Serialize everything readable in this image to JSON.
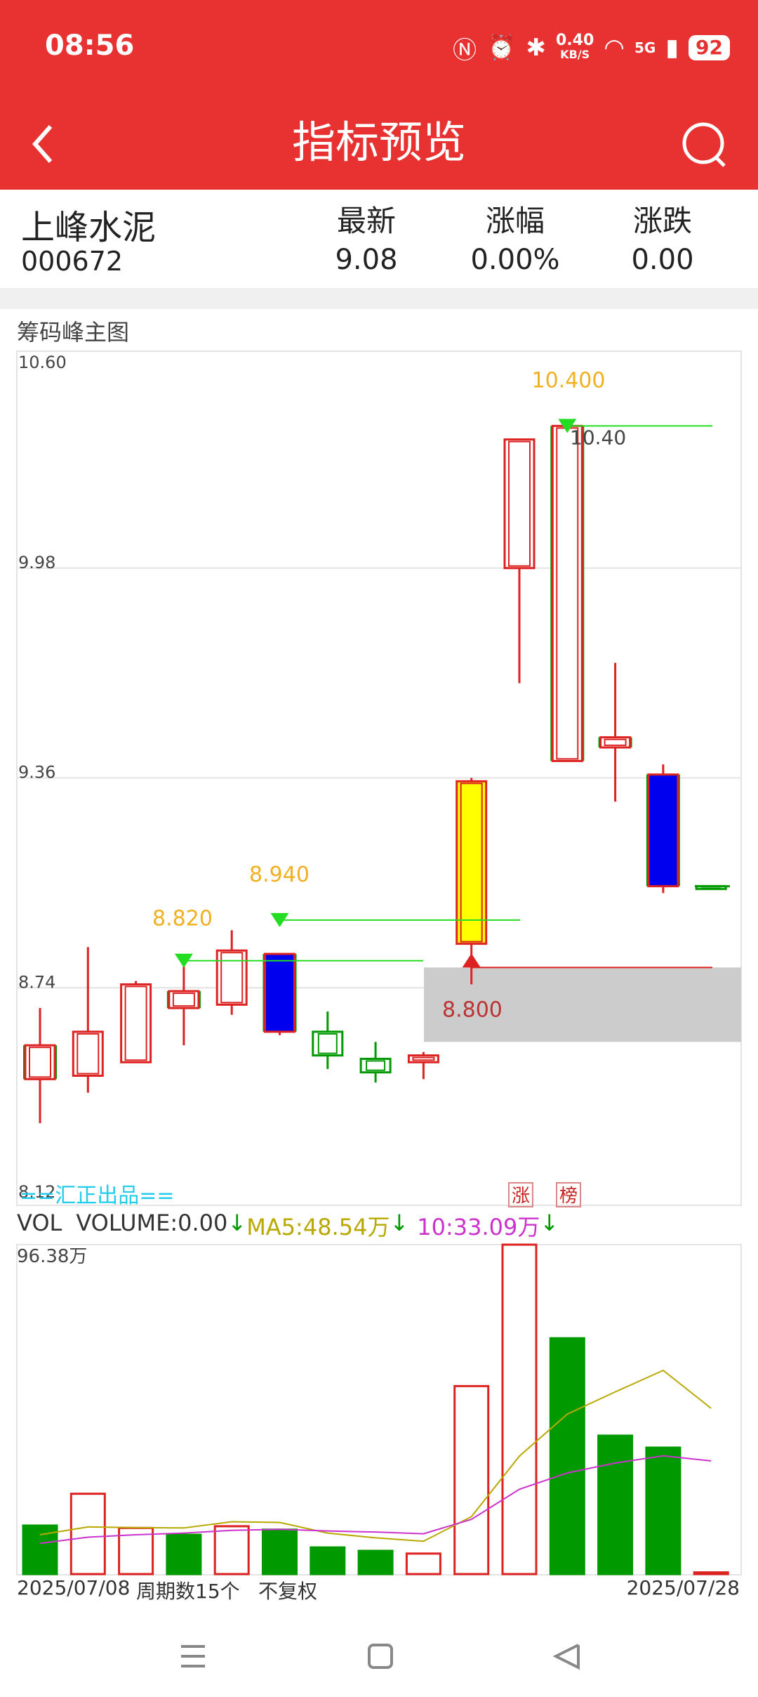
{
  "status_bar": {
    "time": "08:56",
    "net_speed_value": "0.40",
    "net_speed_unit": "KB/S",
    "signal": "5G",
    "battery": "92"
  },
  "header": {
    "title": "指标预览"
  },
  "stock": {
    "name": "上峰水泥",
    "code": "000672",
    "columns": [
      {
        "label": "最新",
        "value": "9.08"
      },
      {
        "label": "涨幅",
        "value": "0.00%"
      },
      {
        "label": "涨跌",
        "value": "0.00"
      }
    ]
  },
  "chart_label": "筹码峰主图",
  "colors": {
    "brand_red": "#e83232",
    "candle_up": "#dd2222",
    "candle_down": "#009a00",
    "highlight_blue": "#0000ee",
    "highlight_yellow": "#ffff00",
    "signal_green": "#22dd22",
    "label_orange": "#f0b020",
    "ma5": "#b8a800",
    "ma10": "#cc33cc"
  },
  "chart_data": [
    {
      "type": "candlestick",
      "y_ticks": [
        "10.60",
        "9.98",
        "9.36",
        "8.74",
        "8.12"
      ],
      "ylim": [
        8.12,
        10.6
      ],
      "candles": [
        {
          "o": 8.47,
          "h": 8.68,
          "l": 8.34,
          "c": 8.57,
          "color": "up",
          "edge": "down"
        },
        {
          "o": 8.48,
          "h": 8.86,
          "l": 8.43,
          "c": 8.61,
          "color": "up"
        },
        {
          "o": 8.52,
          "h": 8.76,
          "l": 8.52,
          "c": 8.75,
          "color": "up"
        },
        {
          "o": 8.68,
          "h": 8.83,
          "l": 8.57,
          "c": 8.73,
          "color": "up",
          "edge": "down"
        },
        {
          "o": 8.69,
          "h": 8.91,
          "l": 8.66,
          "c": 8.85,
          "color": "up"
        },
        {
          "o": 8.84,
          "h": 8.84,
          "l": 8.6,
          "c": 8.61,
          "color": "blue"
        },
        {
          "o": 8.61,
          "h": 8.67,
          "l": 8.5,
          "c": 8.54,
          "color": "down"
        },
        {
          "o": 8.53,
          "h": 8.58,
          "l": 8.46,
          "c": 8.49,
          "color": "down"
        },
        {
          "o": 8.52,
          "h": 8.55,
          "l": 8.47,
          "c": 8.54,
          "color": "up"
        },
        {
          "o": 8.87,
          "h": 9.36,
          "l": 8.75,
          "c": 9.35,
          "color": "yellow"
        },
        {
          "o": 9.98,
          "h": 10.36,
          "l": 9.64,
          "c": 10.36,
          "color": "up"
        },
        {
          "o": 10.4,
          "h": 10.4,
          "l": 9.41,
          "c": 9.41,
          "color": "up",
          "edge": "down"
        },
        {
          "o": 9.45,
          "h": 9.7,
          "l": 9.29,
          "c": 9.48,
          "color": "up",
          "edge": "down"
        },
        {
          "o": 9.37,
          "h": 9.4,
          "l": 9.02,
          "c": 9.04,
          "color": "blue"
        },
        {
          "o": 9.04,
          "h": 9.04,
          "l": 9.04,
          "c": 9.04,
          "color": "down"
        }
      ],
      "annotations": [
        {
          "text": "8.820",
          "value": 8.82,
          "candle": 3
        },
        {
          "text": "8.940",
          "value": 8.94,
          "candle": 5
        },
        {
          "text": "10.400",
          "value": 10.4,
          "candle": 11
        },
        {
          "text": "10.40",
          "value": 10.4,
          "candle": 11
        },
        {
          "text": "8.800",
          "value": 8.8,
          "candle": 9
        }
      ],
      "watermark": "==汇正出品==",
      "markers": [
        "涨",
        "榜"
      ]
    },
    {
      "type": "bar",
      "volume_label": "VOL",
      "volume_value": "VOLUME:0.00",
      "ma5_label": "MA5:48.54万",
      "ma10_label": "10:33.09万",
      "y_max_label": "96.38万",
      "ylim": [
        0,
        96.38
      ],
      "values": [
        14.2,
        23.5,
        13.5,
        11.5,
        14.0,
        13.0,
        7.8,
        6.8,
        6.0,
        55.0,
        96.38,
        69.0,
        40.5,
        37.0,
        0.5
      ],
      "colors": [
        "down",
        "up",
        "up",
        "down",
        "up",
        "down",
        "down",
        "down",
        "up",
        "up",
        "up",
        "down",
        "down",
        "down",
        "up"
      ],
      "ma5": [
        11.5,
        13.8,
        13.6,
        13.5,
        15.3,
        15.1,
        12.0,
        10.6,
        9.6,
        16.8,
        34.5,
        46.8,
        53.3,
        59.6,
        48.5
      ],
      "ma10": [
        9.0,
        10.8,
        11.5,
        12.0,
        12.8,
        13.1,
        12.6,
        12.3,
        11.8,
        16.0,
        24.8,
        29.6,
        32.5,
        34.6,
        33.1
      ]
    }
  ],
  "footer": {
    "start_date": "2025/07/08",
    "period_count": "周期数15个",
    "adjust": "不复权",
    "end_date": "2025/07/28"
  }
}
